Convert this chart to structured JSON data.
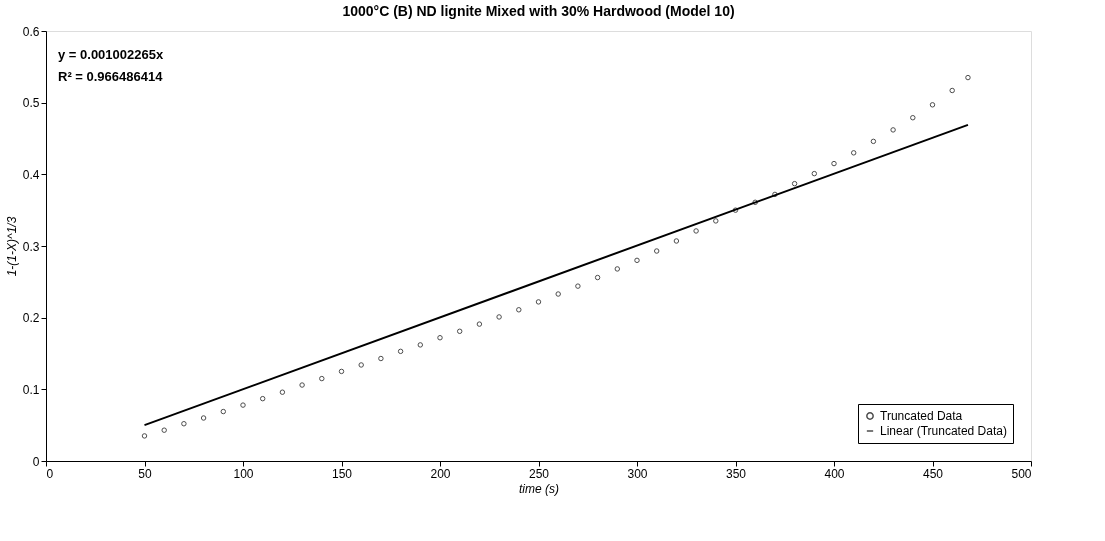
{
  "chart_data": {
    "type": "scatter",
    "title": "1000°C (B) ND lignite Mixed with 30% Hardwood (Model 10)",
    "xlabel": "time (s)",
    "ylabel": "1-(1-X)^1/3",
    "annotations": [
      "y = 0.001002265x",
      "R² = 0.966486414"
    ],
    "series": [
      {
        "name": "Truncated Data",
        "color": "#000000",
        "marker": "circle",
        "x": [
          50,
          60,
          70,
          80,
          90,
          100,
          110,
          120,
          130,
          140,
          150,
          160,
          170,
          180,
          190,
          200,
          210,
          220,
          230,
          240,
          250,
          260,
          270,
          280,
          290,
          300,
          310,
          320,
          330,
          340,
          350,
          360,
          370,
          380,
          390,
          400,
          410,
          420,
          430,
          440,
          450,
          460,
          468
        ],
        "values": [
          0.035,
          0.043,
          0.052,
          0.06,
          0.069,
          0.078,
          0.087,
          0.096,
          0.106,
          0.115,
          0.125,
          0.134,
          0.143,
          0.153,
          0.162,
          0.172,
          0.181,
          0.191,
          0.201,
          0.211,
          0.222,
          0.233,
          0.244,
          0.256,
          0.268,
          0.28,
          0.293,
          0.307,
          0.321,
          0.335,
          0.35,
          0.361,
          0.372,
          0.387,
          0.401,
          0.415,
          0.43,
          0.446,
          0.462,
          0.479,
          0.497,
          0.517,
          0.535
        ]
      },
      {
        "name": "Linear (Truncated Data)",
        "type": "line",
        "color": "#000000",
        "line_style": "solid",
        "x": [
          50,
          468
        ],
        "values": [
          0.05,
          0.469
        ]
      }
    ],
    "xlim": [
      0,
      500
    ],
    "xticks": [
      0,
      50,
      100,
      150,
      200,
      250,
      300,
      350,
      400,
      450,
      500
    ],
    "ylim": [
      0,
      0.6
    ],
    "yticks": [
      0,
      0.1,
      0.2,
      0.3,
      0.4,
      0.5,
      0.6
    ],
    "grid": false,
    "legend": "bottom right"
  }
}
